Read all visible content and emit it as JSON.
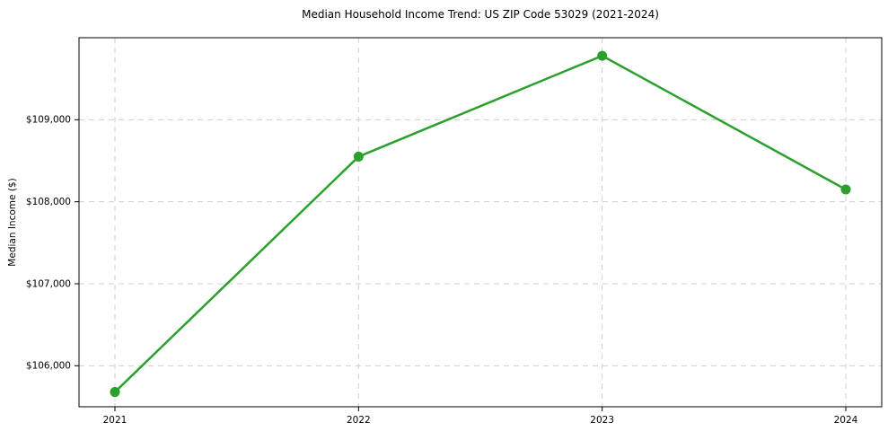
{
  "figure": {
    "background": "#ffffff"
  },
  "chart_data": {
    "type": "line",
    "title": "Median Household Income Trend: US ZIP Code 53029 (2021-2024)",
    "xlabel": "",
    "ylabel": "Median Income ($)",
    "categories": [
      "2021",
      "2022",
      "2023",
      "2024"
    ],
    "values": [
      105680,
      108550,
      109780,
      108150
    ],
    "ylim": [
      105500,
      110000
    ],
    "yticks": [
      106000,
      107000,
      108000,
      109000
    ],
    "ytick_labels": [
      "$106,000",
      "$107,000",
      "$108,000",
      "$109,000"
    ],
    "grid": true,
    "grid_on": "both",
    "legend": "none",
    "line_color": "#2ca02c",
    "marker_color": "#2ca02c",
    "grid_color": "#cfcfcf",
    "spine_color": "#000000",
    "marker": "circle"
  }
}
